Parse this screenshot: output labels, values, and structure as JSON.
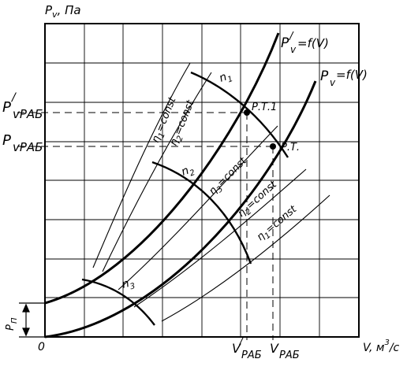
{
  "diagram": {
    "axes": {
      "y_label": "P",
      "y_label_sub": "v",
      "y_label_suffix": ", Па",
      "x_label": "V, м",
      "x_label_sup": "3",
      "x_label_suffix": "/с",
      "origin": "0"
    },
    "y_ticks": {
      "p_prime_main": "P",
      "p_prime_mark": "/",
      "p_prime_sub": "vРАБ",
      "p_main": "P",
      "p_sub": "vРАБ",
      "pn_main": "P",
      "pn_sub": "П"
    },
    "x_ticks": {
      "v_prime_main": "V",
      "v_prime_mark": "/",
      "v_prime_sub": "РАБ",
      "v_main": "V",
      "v_sub": "РАБ"
    },
    "network_curves": {
      "prime_main": "P",
      "prime_mark": "/",
      "prime_sub": "v",
      "prime_func": "=f(V)",
      "main": "P",
      "main_sub": "v",
      "main_func": "=f(V)"
    },
    "operating_points": {
      "pt1": "Р.Т.1",
      "pt": "Р.Т."
    },
    "speed_labels": {
      "n1_main": "n",
      "n1_sub": "1",
      "n2_main": "n",
      "n2_sub": "2",
      "n3_main": "n",
      "n3_sub": "3"
    },
    "efficiency_labels": {
      "eta1_main": "η",
      "eta1_sub": "1",
      "eta1_rest": "=const",
      "eta2_main": "η",
      "eta2_sub": "2",
      "eta2_rest": "=const",
      "eta3_main": "η",
      "eta3_sub": "3",
      "eta3_rest": "=const",
      "eta2b_main": "η",
      "eta2b_sub": "2",
      "eta2b_rest": "=const",
      "eta1b_main": "η",
      "eta1b_sub": "1",
      "eta1b_rest": "=const"
    }
  }
}
